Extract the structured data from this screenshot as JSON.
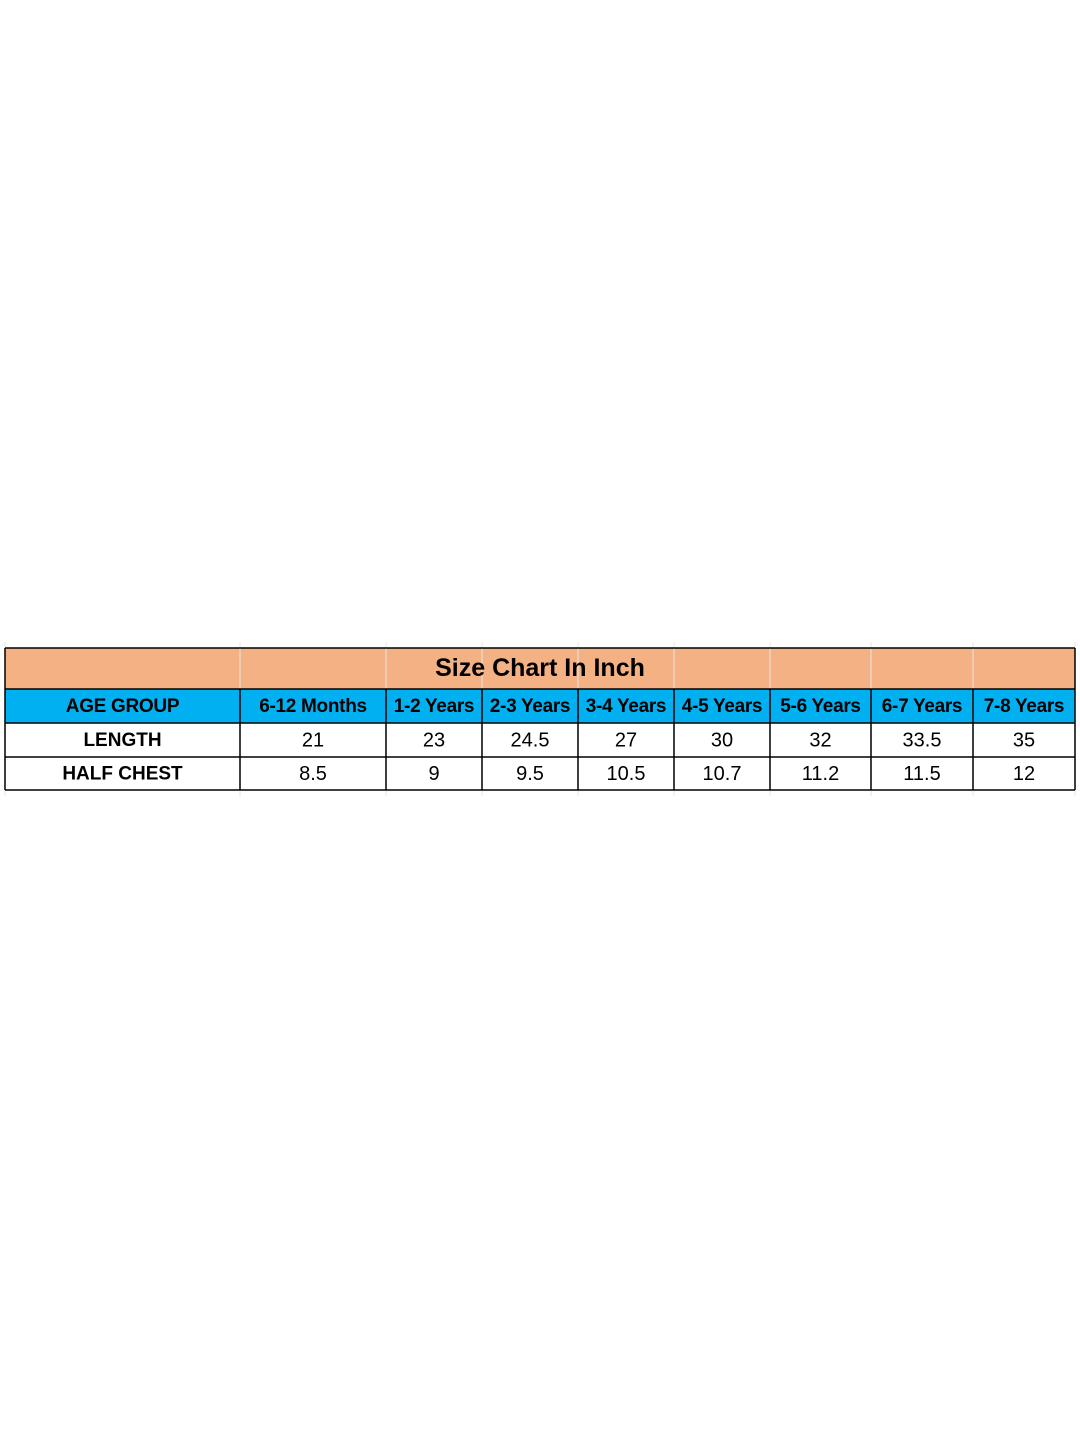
{
  "table": {
    "title": "Size Chart In Inch",
    "header": [
      "AGE GROUP",
      "6-12 Months",
      "1-2 Years",
      "2-3 Years",
      "3-4 Years",
      "4-5 Years",
      "5-6 Years",
      "6-7 Years",
      "7-8 Years"
    ],
    "rows": [
      [
        "LENGTH",
        21,
        23,
        24.5,
        27,
        30,
        32,
        33.5,
        35
      ],
      [
        "HALF CHEST",
        8.5,
        9,
        9.5,
        10.5,
        10.7,
        11.2,
        11.5,
        12
      ]
    ]
  }
}
